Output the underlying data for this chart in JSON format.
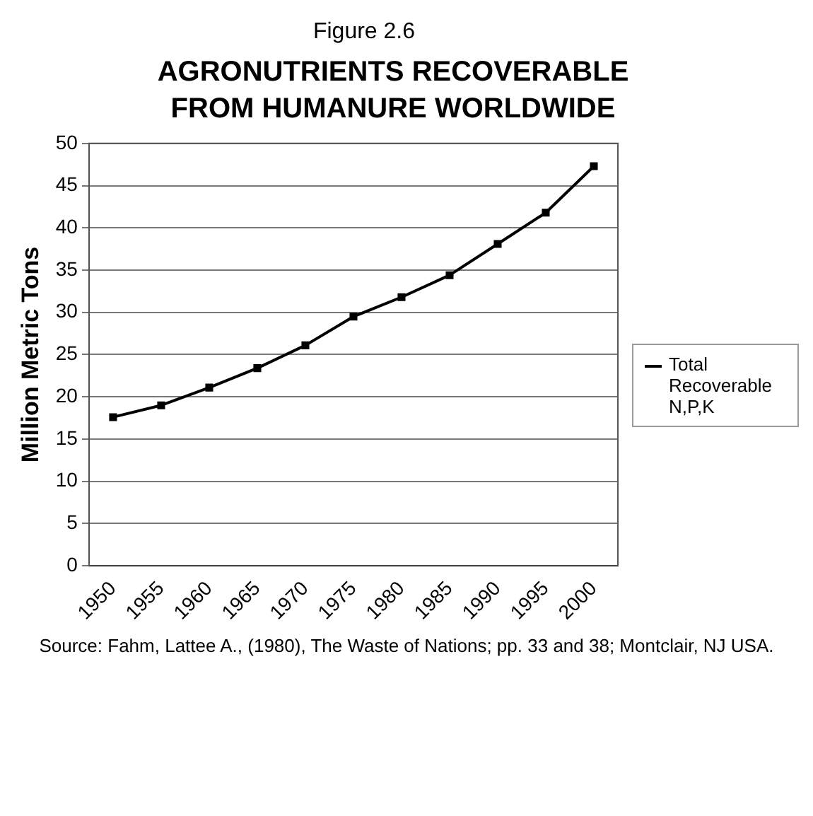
{
  "chart_data": {
    "type": "line",
    "title": "AGRONUTRIENTS RECOVERABLE FROM HUMANURE WORLDWIDE",
    "ylabel": "Million Metric Tons",
    "annotations": [
      "Figure 2.6",
      "Source: Fahm, Lattee A., (1980), The Waste of Nations; pp. 33 and 38; Montclair, NJ USA."
    ],
    "categories": [
      "1950",
      "1955",
      "1960",
      "1965",
      "1970",
      "1975",
      "1980",
      "1985",
      "1990",
      "1995",
      "2000"
    ],
    "series": [
      {
        "name": "Total Recoverable N,P,K",
        "color": "#000000",
        "values": [
          17.6,
          19.0,
          21.1,
          23.4,
          26.1,
          29.5,
          31.8,
          34.4,
          38.1,
          41.8,
          47.3
        ]
      }
    ],
    "ylim": [
      0,
      50
    ],
    "yticks": [
      0,
      5,
      10,
      15,
      20,
      25,
      30,
      35,
      40,
      45,
      50
    ],
    "grid": "y",
    "legend": "right",
    "marker": "square",
    "line_style": "solid"
  }
}
